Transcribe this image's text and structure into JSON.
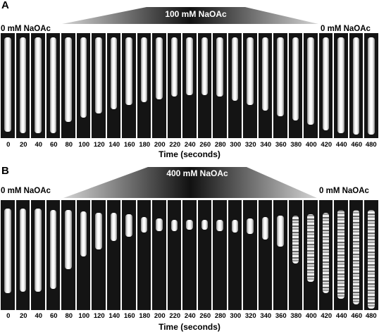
{
  "panels": [
    {
      "letter": "A",
      "left_condition": "0 mM NaOAc",
      "center_condition": "100 mM NaOAc",
      "right_condition": "0 mM NaOAc",
      "tick_labels": [
        "0",
        "20",
        "40",
        "60",
        "80",
        "100",
        "120",
        "140",
        "160",
        "180",
        "200",
        "220",
        "240",
        "260",
        "280",
        "300",
        "320",
        "340",
        "360",
        "380",
        "400",
        "420",
        "440",
        "460",
        "480"
      ],
      "axis_title": "Time (seconds)"
    },
    {
      "letter": "B",
      "left_condition": "0 mM NaOAc",
      "center_condition": "400 mM NaOAc",
      "right_condition": "0 mM NaOAc",
      "tick_labels": [
        "0",
        "20",
        "40",
        "60",
        "80",
        "100",
        "120",
        "140",
        "160",
        "180",
        "200",
        "220",
        "240",
        "260",
        "280",
        "300",
        "320",
        "340",
        "360",
        "380",
        "400",
        "420",
        "440",
        "460",
        "480"
      ],
      "axis_title": "Time (seconds)"
    }
  ],
  "colors": {
    "background": "#ffffff",
    "frame": "#141414",
    "cell": "#e6e6e6",
    "ramp_dark": "#111111",
    "ramp_light": "#cfcfcf"
  }
}
